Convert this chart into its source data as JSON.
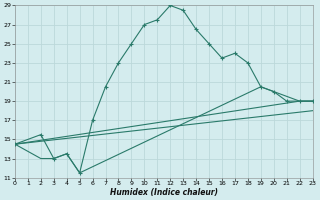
{
  "xlabel": "Humidex (Indice chaleur)",
  "xlim": [
    0,
    23
  ],
  "ylim": [
    11,
    29
  ],
  "xticks": [
    0,
    1,
    2,
    3,
    4,
    5,
    6,
    7,
    8,
    9,
    10,
    11,
    12,
    13,
    14,
    15,
    16,
    17,
    18,
    19,
    20,
    21,
    22,
    23
  ],
  "yticks": [
    11,
    13,
    15,
    17,
    19,
    21,
    23,
    25,
    27,
    29
  ],
  "bg_color": "#d4ecee",
  "grid_color": "#bcd8da",
  "line_color": "#2a7a6a",
  "line1_x": [
    0,
    2,
    3,
    4,
    5,
    6,
    7,
    8,
    9,
    10,
    11,
    12,
    13,
    14,
    15,
    16,
    17,
    18,
    19,
    20,
    21,
    22,
    23
  ],
  "line1_y": [
    14.5,
    15.5,
    13.0,
    13.5,
    11.5,
    17.0,
    20.5,
    23.0,
    25.0,
    27.0,
    27.5,
    29.0,
    28.5,
    26.5,
    25.0,
    23.5,
    24.0,
    23.0,
    20.5,
    20.0,
    19.0,
    19.0,
    19.0
  ],
  "line2_x": [
    0,
    2,
    3,
    4,
    5,
    19,
    20,
    22,
    23
  ],
  "line2_y": [
    14.5,
    13.0,
    13.0,
    13.5,
    11.5,
    20.5,
    20.0,
    19.0,
    19.0
  ],
  "line3_x": [
    0,
    22,
    23
  ],
  "line3_y": [
    14.5,
    19.0,
    19.0
  ],
  "line4_x": [
    0,
    23
  ],
  "line4_y": [
    14.5,
    18.0
  ]
}
